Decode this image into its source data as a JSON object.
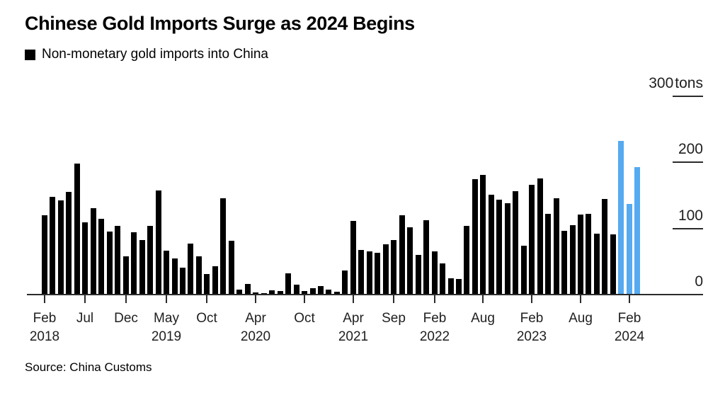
{
  "title": "Chinese Gold Imports Surge as 2024 Begins",
  "legend": {
    "swatch_color": "#000000",
    "label": "Non-monetary gold imports into China"
  },
  "source": "Source: China Customs",
  "colors": {
    "bar": "#000000",
    "highlight": "#55AAF0",
    "axis": "#2b2b2b",
    "text": "#1f1f1f"
  },
  "chart_data": {
    "type": "bar",
    "title": "Chinese Gold Imports Surge as 2024 Begins",
    "subtitle": "Non-monetary gold imports into China",
    "xlabel": "",
    "ylabel": "tons",
    "ylim": [
      0,
      300
    ],
    "grid": false,
    "legend_position": "top-left",
    "unit": "tons",
    "highlight_start_index": 71,
    "highlight_note": "2024 bars shown in blue",
    "categories": [
      "Feb 2018",
      "Mar 2018",
      "Apr 2018",
      "May 2018",
      "Jun 2018",
      "Jul 2018",
      "Aug 2018",
      "Sep 2018",
      "Oct 2018",
      "Nov 2018",
      "Dec 2018",
      "Jan 2019",
      "Feb 2019",
      "Mar 2019",
      "Apr 2019",
      "May 2019",
      "Jun 2019",
      "Jul 2019",
      "Aug 2019",
      "Sep 2019",
      "Oct 2019",
      "Nov 2019",
      "Dec 2019",
      "Jan 2020",
      "Feb 2020",
      "Mar 2020",
      "Apr 2020",
      "May 2020",
      "Jun 2020",
      "Jul 2020",
      "Aug 2020",
      "Sep 2020",
      "Oct 2020",
      "Nov 2020",
      "Dec 2020",
      "Jan 2021",
      "Feb 2021",
      "Mar 2021",
      "Apr 2021",
      "May 2021",
      "Jun 2021",
      "Jul 2021",
      "Aug 2021",
      "Sep 2021",
      "Oct 2021",
      "Nov 2021",
      "Dec 2021",
      "Jan 2022",
      "Feb 2022",
      "Mar 2022",
      "Apr 2022",
      "May 2022",
      "Jun 2022",
      "Jul 2022",
      "Aug 2022",
      "Sep 2022",
      "Oct 2022",
      "Nov 2022",
      "Dec 2022",
      "Jan 2023",
      "Feb 2023",
      "Mar 2023",
      "Apr 2023",
      "May 2023",
      "Jun 2023",
      "Jul 2023",
      "Aug 2023",
      "Sep 2023",
      "Oct 2023",
      "Nov 2023",
      "Dec 2023",
      "Jan 2024",
      "Feb 2024",
      "Mar 2024"
    ],
    "values": [
      120,
      148,
      142,
      155,
      198,
      109,
      131,
      115,
      95,
      104,
      58,
      94,
      83,
      104,
      158,
      66,
      55,
      41,
      77,
      58,
      31,
      43,
      146,
      81,
      8,
      16,
      3,
      2,
      6,
      5,
      32,
      15,
      5,
      10,
      13,
      8,
      4,
      36,
      111,
      67,
      65,
      63,
      76,
      82,
      120,
      102,
      60,
      112,
      65,
      47,
      25,
      24,
      104,
      175,
      181,
      151,
      144,
      138,
      156,
      74,
      166,
      176,
      122,
      146,
      96,
      105,
      121,
      122,
      92,
      145,
      91,
      233,
      137,
      193
    ],
    "y_ticks": [
      {
        "value": 300,
        "label": "300",
        "unit": "tons"
      },
      {
        "value": 200,
        "label": "200",
        "unit": ""
      },
      {
        "value": 100,
        "label": "100",
        "unit": ""
      },
      {
        "value": 0,
        "label": "0",
        "unit": ""
      }
    ],
    "x_ticks": [
      {
        "index": 0,
        "line1": "Feb",
        "line2": "2018"
      },
      {
        "index": 5,
        "line1": "Jul",
        "line2": ""
      },
      {
        "index": 10,
        "line1": "Dec",
        "line2": ""
      },
      {
        "index": 15,
        "line1": "May",
        "line2": "2019"
      },
      {
        "index": 20,
        "line1": "Oct",
        "line2": ""
      },
      {
        "index": 26,
        "line1": "Apr",
        "line2": "2020"
      },
      {
        "index": 32,
        "line1": "Oct",
        "line2": ""
      },
      {
        "index": 38,
        "line1": "Apr",
        "line2": "2021"
      },
      {
        "index": 43,
        "line1": "Sep",
        "line2": ""
      },
      {
        "index": 48,
        "line1": "Feb",
        "line2": "2022"
      },
      {
        "index": 54,
        "line1": "Aug",
        "line2": ""
      },
      {
        "index": 60,
        "line1": "Feb",
        "line2": "2023"
      },
      {
        "index": 66,
        "line1": "Aug",
        "line2": ""
      },
      {
        "index": 72,
        "line1": "Feb",
        "line2": "2024"
      }
    ]
  }
}
